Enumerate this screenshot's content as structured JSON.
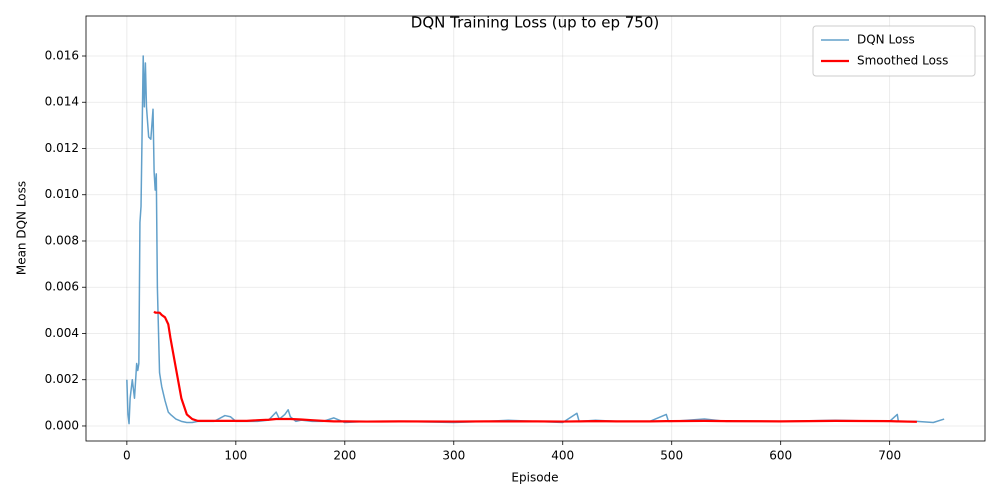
{
  "chart_data": {
    "type": "line",
    "title": "DQN Training Loss (up to ep 750)",
    "x_label": "Episode",
    "y_label": "Mean DQN Loss",
    "x": [
      0,
      1,
      2,
      3,
      5,
      7,
      9,
      10,
      11,
      12,
      13,
      15,
      16,
      17,
      18,
      20,
      22,
      24,
      25,
      26,
      27,
      28,
      30,
      32,
      35,
      38,
      40,
      45,
      50,
      55,
      60,
      65,
      70,
      80,
      90,
      95,
      100,
      110,
      120,
      130,
      137,
      140,
      145,
      148,
      150,
      155,
      160,
      170,
      180,
      190,
      200,
      220,
      250,
      300,
      330,
      350,
      375,
      400,
      413,
      415,
      430,
      450,
      480,
      495,
      497,
      500,
      530,
      550,
      600,
      650,
      700,
      707,
      708,
      725,
      740,
      750
    ],
    "series": [
      {
        "name": "DQN Loss",
        "color": "#1f77b4",
        "width": 1.5,
        "opacity": 0.7,
        "values": [
          0.002,
          0.0005,
          0.0001,
          0.0012,
          0.002,
          0.0012,
          0.0027,
          0.0024,
          0.0027,
          0.0088,
          0.0095,
          0.016,
          0.0138,
          0.0157,
          0.0138,
          0.0125,
          0.0124,
          0.0137,
          0.011,
          0.0102,
          0.0109,
          0.006,
          0.0023,
          0.0017,
          0.0011,
          0.0006,
          0.0005,
          0.0003,
          0.0002,
          0.00015,
          0.00015,
          0.0002,
          0.0002,
          0.0002,
          0.00045,
          0.0004,
          0.0002,
          0.0002,
          0.0002,
          0.00025,
          0.0006,
          0.0003,
          0.0005,
          0.0007,
          0.0004,
          0.0002,
          0.00025,
          0.0002,
          0.0002,
          0.00035,
          0.00015,
          0.0002,
          0.0002,
          0.00015,
          0.0002,
          0.00025,
          0.0002,
          0.00015,
          0.00055,
          0.0002,
          0.00025,
          0.0002,
          0.0002,
          0.0005,
          0.0002,
          0.0002,
          0.0003,
          0.0002,
          0.0002,
          0.00025,
          0.0002,
          0.0005,
          0.0002,
          0.0002,
          0.00015,
          0.0003
        ]
      },
      {
        "name": "Smoothed Loss",
        "color": "#ff0000",
        "width": 2.2,
        "opacity": 1,
        "values": [
          null,
          null,
          null,
          null,
          null,
          null,
          null,
          null,
          null,
          null,
          null,
          null,
          null,
          null,
          null,
          null,
          null,
          null,
          0.00495,
          0.0049,
          0.0049,
          0.0049,
          0.0049,
          0.0048,
          0.0047,
          0.0044,
          0.0038,
          0.0025,
          0.0012,
          0.0005,
          0.0003,
          0.00022,
          0.00022,
          0.00022,
          0.00022,
          0.00022,
          0.00022,
          0.00022,
          0.00025,
          0.00027,
          0.0003,
          0.0003,
          0.0003,
          0.0003,
          0.0003,
          0.00029,
          0.00028,
          0.00025,
          0.00022,
          0.0002,
          0.0002,
          0.00019,
          0.0002,
          0.00019,
          0.0002,
          0.0002,
          0.0002,
          0.00019,
          0.0002,
          0.0002,
          0.00021,
          0.0002,
          0.0002,
          0.00021,
          0.00021,
          0.00021,
          0.00022,
          0.00021,
          0.0002,
          0.00022,
          0.00021,
          0.0002,
          0.0002,
          0.00018,
          null,
          null
        ]
      }
    ],
    "xlim": [
      -37.5,
      787.5
    ],
    "xticks": [
      0,
      100,
      200,
      300,
      400,
      500,
      600,
      700
    ],
    "ylim": [
      -0.00065,
      0.01773
    ],
    "yticks": [
      {
        "value": 0,
        "label": "0.000"
      },
      {
        "value": 0.002,
        "label": "0.002"
      },
      {
        "value": 0.004,
        "label": "0.004"
      },
      {
        "value": 0.006,
        "label": "0.006"
      },
      {
        "value": 0.008,
        "label": "0.008"
      },
      {
        "value": 0.01,
        "label": "0.010"
      },
      {
        "value": 0.012,
        "label": "0.012"
      },
      {
        "value": 0.014,
        "label": "0.014"
      },
      {
        "value": 0.016,
        "label": "0.016"
      }
    ],
    "grid": true,
    "legend": "upper right"
  }
}
